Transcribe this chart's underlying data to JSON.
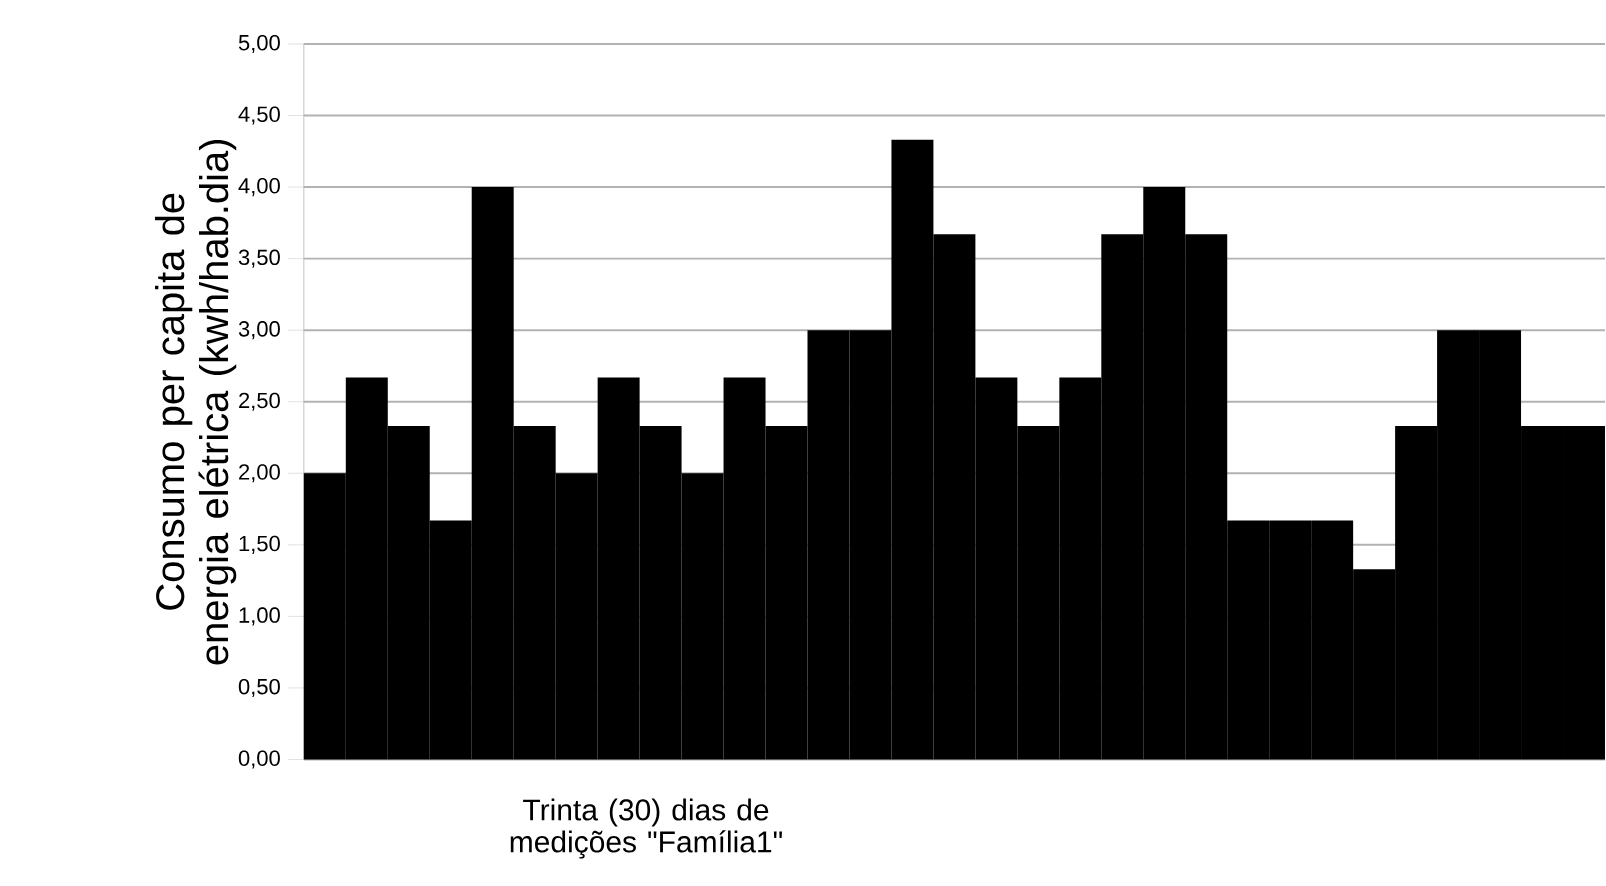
{
  "chart_data": {
    "type": "bar",
    "xlabel": "Trinta (30) dias de medições \"Família1\"",
    "ylabel": "Consumo per capita de energia elétrica (kwh/hab.dia)",
    "categories": [
      null,
      null,
      null,
      null,
      null,
      null,
      null,
      null,
      null,
      null,
      null,
      null,
      null,
      null,
      null,
      null,
      null,
      null,
      null,
      null,
      null,
      null,
      null,
      null,
      null,
      null,
      null,
      null,
      null,
      null,
      null
    ],
    "values": [
      2.0,
      2.67,
      2.33,
      1.67,
      4.0,
      2.33,
      2.0,
      2.67,
      2.33,
      2.0,
      2.67,
      2.33,
      3.0,
      3.0,
      4.33,
      3.67,
      2.67,
      2.33,
      2.67,
      3.67,
      4.0,
      3.67,
      1.67,
      1.67,
      1.67,
      1.33,
      2.33,
      3.0,
      3.0,
      2.33,
      2.33
    ],
    "color": "#000000",
    "ylim": [
      0,
      5
    ],
    "yticks": [
      {
        "value": 0,
        "label": "0,00"
      },
      {
        "value": 0.5,
        "label": "0,50"
      },
      {
        "value": 1,
        "label": "1,00"
      },
      {
        "value": 1.5,
        "label": "1,50"
      },
      {
        "value": 2,
        "label": "2,00"
      },
      {
        "value": 2.5,
        "label": "2,50"
      },
      {
        "value": 3,
        "label": "3,00"
      },
      {
        "value": 3.5,
        "label": "3,50"
      },
      {
        "value": 4,
        "label": "4,00"
      },
      {
        "value": 4.5,
        "label": "4,50"
      },
      {
        "value": 5,
        "label": "5,00"
      }
    ],
    "grid": "y"
  }
}
